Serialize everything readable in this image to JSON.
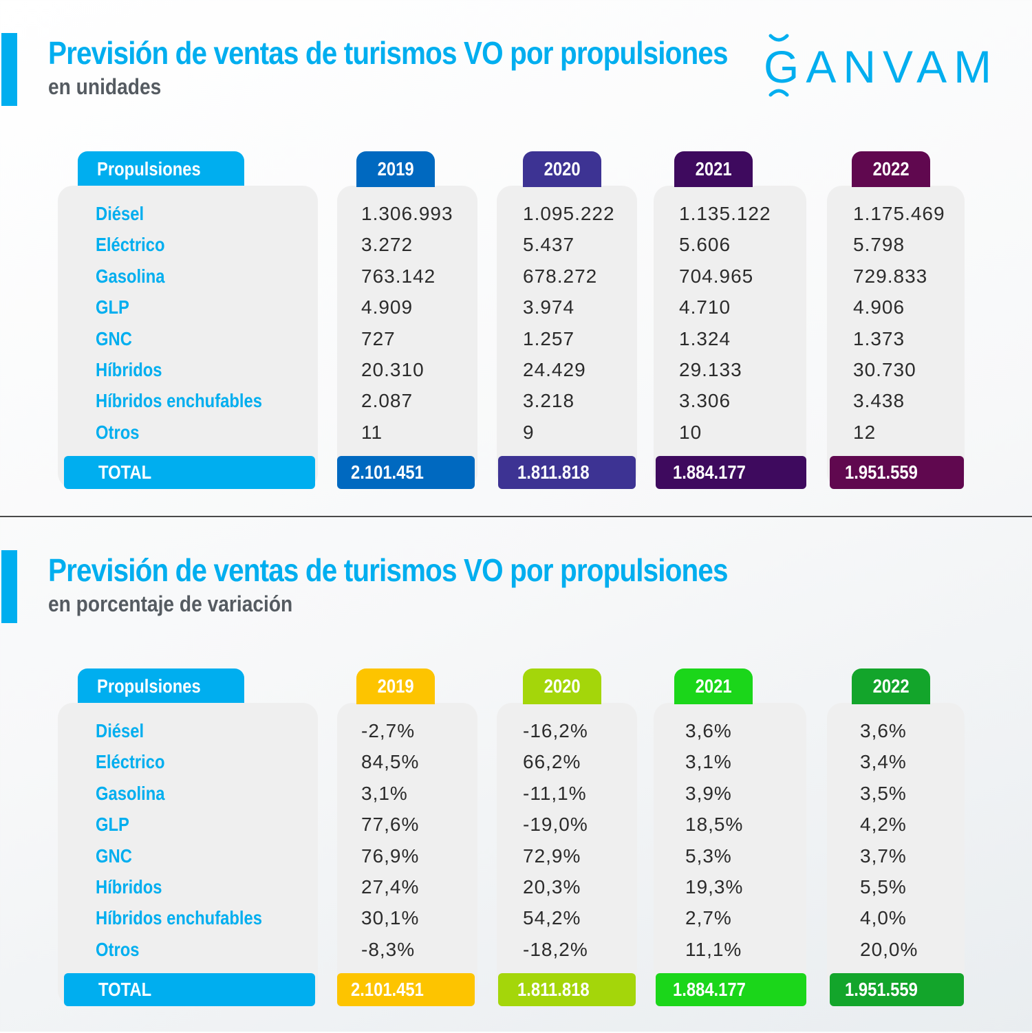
{
  "logo": {
    "text": "GANVAM"
  },
  "sections": [
    {
      "title": "Previsión de ventas de turismos VO por propulsiones",
      "subtitle": "en unidades",
      "header_label": "Propulsiones",
      "years": [
        "2019",
        "2020",
        "2021",
        "2022"
      ],
      "colors": [
        "#0069c0",
        "#3d3393",
        "#3e0a5e",
        "#60084f"
      ],
      "rows": [
        {
          "label": "Diésel",
          "values": [
            "1.306.993",
            "1.095.222",
            "1.135.122",
            "1.175.469"
          ]
        },
        {
          "label": "Eléctrico",
          "values": [
            "3.272",
            "5.437",
            "5.606",
            "5.798"
          ]
        },
        {
          "label": "Gasolina",
          "values": [
            "763.142",
            "678.272",
            "704.965",
            "729.833"
          ]
        },
        {
          "label": "GLP",
          "values": [
            "4.909",
            "3.974",
            "4.710",
            "4.906"
          ]
        },
        {
          "label": "GNC",
          "values": [
            "727",
            "1.257",
            "1.324",
            "1.373"
          ]
        },
        {
          "label": "Híbridos",
          "values": [
            "20.310",
            "24.429",
            "29.133",
            "30.730"
          ]
        },
        {
          "label": "Híbridos enchufables",
          "values": [
            "2.087",
            "3.218",
            "3.306",
            "3.438"
          ]
        },
        {
          "label": "Otros",
          "values": [
            "11",
            "9",
            "10",
            "12"
          ]
        }
      ],
      "total_label": "TOTAL",
      "totals": [
        "2.101.451",
        "1.811.818",
        "1.884.177",
        "1.951.559"
      ]
    },
    {
      "title": "Previsión de ventas de turismos VO por propulsiones",
      "subtitle": "en porcentaje de variación",
      "header_label": "Propulsiones",
      "years": [
        "2019",
        "2020",
        "2021",
        "2022"
      ],
      "colors": [
        "#fdc400",
        "#a4d60a",
        "#1bd61a",
        "#13a52b"
      ],
      "rows": [
        {
          "label": "Diésel",
          "values": [
            "-2,7%",
            "-16,2%",
            "3,6%",
            "3,6%"
          ]
        },
        {
          "label": "Eléctrico",
          "values": [
            "84,5%",
            "66,2%",
            "3,1%",
            "3,4%"
          ]
        },
        {
          "label": "Gasolina",
          "values": [
            "3,1%",
            "-11,1%",
            "3,9%",
            "3,5%"
          ]
        },
        {
          "label": "GLP",
          "values": [
            "77,6%",
            "-19,0%",
            "18,5%",
            "4,2%"
          ]
        },
        {
          "label": "GNC",
          "values": [
            "76,9%",
            "72,9%",
            "5,3%",
            "3,7%"
          ]
        },
        {
          "label": "Híbridos",
          "values": [
            "27,4%",
            "20,3%",
            "19,3%",
            "5,5%"
          ]
        },
        {
          "label": "Híbridos enchufables",
          "values": [
            "30,1%",
            "54,2%",
            "2,7%",
            "4,0%"
          ]
        },
        {
          "label": "Otros",
          "values": [
            "-8,3%",
            "-18,2%",
            "11,1%",
            "20,0%"
          ]
        }
      ],
      "total_label": "TOTAL",
      "totals": [
        "2.101.451",
        "1.811.818",
        "1.884.177",
        "1.951.559"
      ]
    }
  ]
}
